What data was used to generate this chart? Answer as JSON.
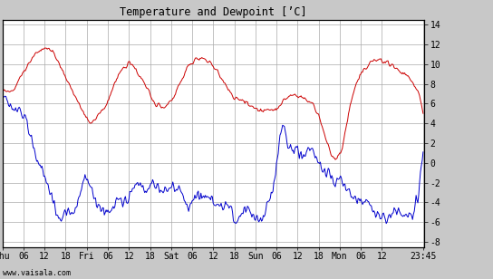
{
  "title": "Temperature and Dewpoint [’C]",
  "ylabel_right_ticks": [
    -8,
    -6,
    -4,
    -2,
    0,
    2,
    4,
    6,
    8,
    10,
    12,
    14
  ],
  "ylim": [
    -8.5,
    14.5
  ],
  "xlabel_ticks_labels": [
    "Thu",
    "06",
    "12",
    "18",
    "Fri",
    "06",
    "12",
    "18",
    "Sat",
    "06",
    "12",
    "18",
    "Sun",
    "06",
    "12",
    "18",
    "Mon",
    "06",
    "12",
    "23:45"
  ],
  "watermark": "www.vaisala.com",
  "bg_color": "#c8c8c8",
  "plot_bg_color": "#ffffff",
  "grid_color": "#aaaaaa",
  "temp_color": "#cc0000",
  "dew_color": "#0000cc",
  "temp_kp_x": [
    0,
    18,
    36,
    54,
    72,
    90,
    102,
    108,
    120,
    138,
    150,
    168,
    186,
    192,
    210,
    228,
    240,
    252,
    264,
    276,
    288,
    312,
    324,
    348,
    360,
    384,
    396,
    408,
    420,
    432,
    450,
    468,
    480
  ],
  "temp_kp_y": [
    7.0,
    7.5,
    10.5,
    11.0,
    8.5,
    5.0,
    3.5,
    4.0,
    5.5,
    9.0,
    9.5,
    6.5,
    5.5,
    6.0,
    9.5,
    10.5,
    9.5,
    8.0,
    6.5,
    6.0,
    5.5,
    5.5,
    6.5,
    6.5,
    5.0,
    1.5,
    6.5,
    9.5,
    11.0,
    11.5,
    10.5,
    9.5,
    6.0
  ],
  "dew_kp_x": [
    0,
    12,
    24,
    36,
    48,
    60,
    66,
    72,
    84,
    96,
    102,
    108,
    120,
    132,
    138,
    144,
    150,
    156,
    162,
    168,
    180,
    192,
    198,
    204,
    210,
    216,
    222,
    228,
    234,
    240,
    246,
    252,
    258,
    264,
    276,
    288,
    300,
    312,
    318,
    324,
    330,
    336,
    342,
    348,
    354,
    360,
    372,
    384,
    390,
    396,
    402,
    408,
    414,
    420,
    426,
    432,
    444,
    456,
    468,
    480
  ],
  "dew_kp_y": [
    5.5,
    4.5,
    3.5,
    1.0,
    -1.5,
    -4.5,
    -5.5,
    -5.0,
    -3.5,
    -1.5,
    -3.0,
    -5.0,
    -5.5,
    -5.0,
    -5.5,
    -4.5,
    -4.0,
    -3.5,
    -4.0,
    -3.5,
    -4.5,
    -3.5,
    -3.0,
    -3.5,
    -4.5,
    -4.0,
    -3.5,
    -3.5,
    -4.0,
    -4.5,
    -4.5,
    -4.5,
    -4.0,
    -5.5,
    -4.5,
    -5.5,
    -4.5,
    0.5,
    4.0,
    3.0,
    2.5,
    2.0,
    1.5,
    2.5,
    2.5,
    1.5,
    -0.5,
    -1.5,
    -1.5,
    -2.0,
    -2.5,
    -3.0,
    -2.5,
    -3.0,
    -4.0,
    -4.5,
    -4.5,
    -4.5,
    -5.0,
    2.5
  ]
}
